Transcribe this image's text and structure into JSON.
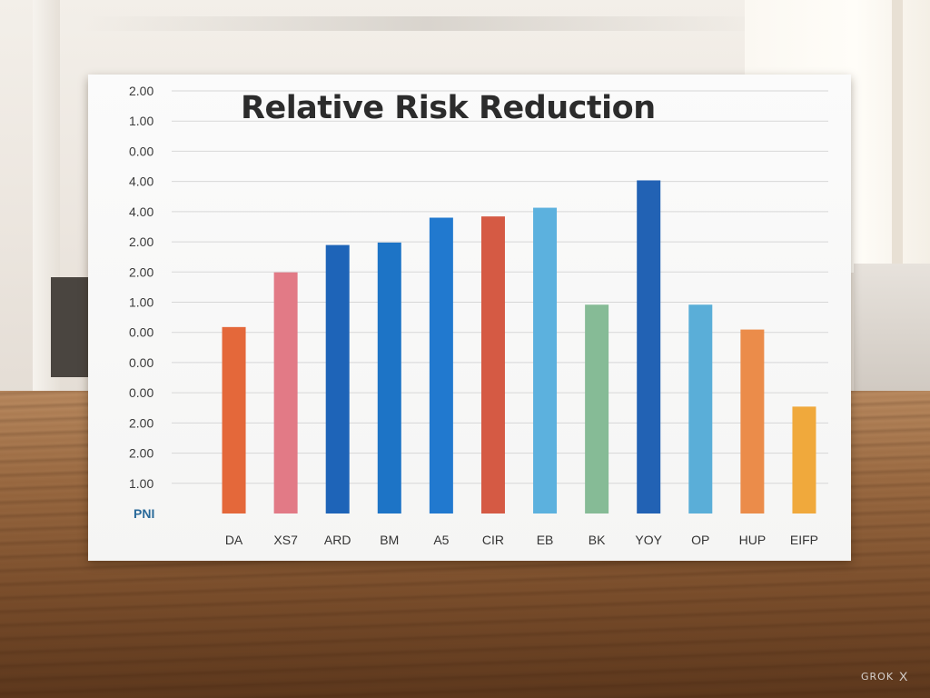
{
  "chart_data": {
    "type": "bar",
    "title": "Relative Risk Reduction",
    "categories": [
      "DA",
      "XS7",
      "ARD",
      "BM",
      "A5",
      "CIR",
      "EB",
      "BK",
      "YOY",
      "OP",
      "HUP",
      "EIFP"
    ],
    "series": [
      {
        "values": [
          7.5,
          9.7,
          10.8,
          10.9,
          11.9,
          11.95,
          12.3,
          8.4,
          13.4,
          8.4,
          7.4,
          4.3
        ],
        "colors": [
          "#e4683a",
          "#e27a86",
          "#1e64b8",
          "#1d74c6",
          "#2179cf",
          "#d55a44",
          "#5cb1de",
          "#86bb96",
          "#2262b4",
          "#5aaed8",
          "#eb8c4a",
          "#f0a93c"
        ]
      }
    ],
    "ylim": [
      0,
      17
    ],
    "y_tick_labels": [
      "PNI",
      "1.00",
      "2.00",
      "2.00",
      "0.00",
      "0.00",
      "0.00",
      "1.00",
      "2.00",
      "2.00",
      "4.00",
      "4.00",
      "0.00",
      "1.00",
      "2.00"
    ],
    "grid": true,
    "xlabel": "",
    "ylabel": ""
  },
  "scene": {
    "watermark": "GROK",
    "watermark_mark": "X"
  }
}
